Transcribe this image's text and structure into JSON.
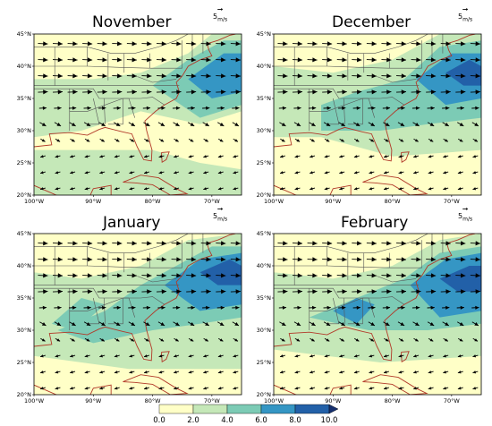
{
  "panels": [
    {
      "title": "November",
      "speed_shading": "nov"
    },
    {
      "title": "December",
      "speed_shading": "dec"
    },
    {
      "title": "January",
      "speed_shading": "jan"
    },
    {
      "title": "February",
      "speed_shading": "feb"
    }
  ],
  "reference_vector": {
    "value": "5",
    "units_num": "m",
    "units_den": "s"
  },
  "lat_labels": [
    "45°N",
    "40°N",
    "35°N",
    "30°N",
    "25°N",
    "20°N"
  ],
  "lon_labels": [
    "100°W",
    "90°W",
    "80°W",
    "70°W"
  ],
  "colorbar": {
    "ticks": [
      "0.0",
      "2.0",
      "4.0",
      "6.0",
      "8.0",
      "10.0"
    ],
    "colors": [
      "#ffffc7",
      "#c5e8b8",
      "#7ccbb5",
      "#3596c4",
      "#2260a8",
      "#16306f"
    ]
  },
  "colors": {
    "coast": "#b23a2a",
    "borders": "#555555",
    "arrow": "#000000"
  }
}
